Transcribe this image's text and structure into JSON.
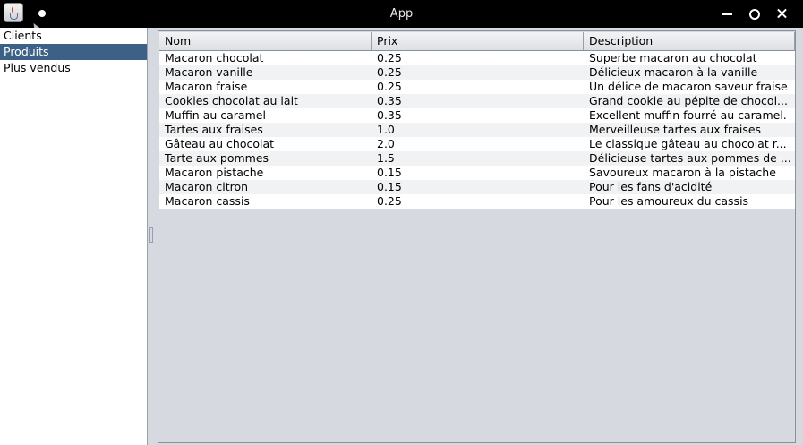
{
  "window": {
    "title": "App"
  },
  "sidebar": {
    "items": [
      {
        "label": "Clients",
        "selected": false
      },
      {
        "label": "Produits",
        "selected": true
      },
      {
        "label": "Plus vendus",
        "selected": false
      }
    ]
  },
  "table": {
    "columns": [
      "Nom",
      "Prix",
      "Description"
    ],
    "rows": [
      [
        "Macaron chocolat",
        "0.25",
        "Superbe macaron au chocolat"
      ],
      [
        "Macaron vanille",
        "0.25",
        "Délicieux macaron à la vanille"
      ],
      [
        "Macaron fraise",
        "0.25",
        "Un délice de macaron saveur fraise"
      ],
      [
        "Cookies chocolat au lait",
        "0.35",
        "Grand cookie au pépite de chocol..."
      ],
      [
        "Muffin au caramel",
        "0.35",
        "Excellent muffin fourré au caramel."
      ],
      [
        "Tartes aux fraises",
        "1.0",
        "Merveilleuse tartes aux fraises"
      ],
      [
        "Gâteau au chocolat",
        "2.0",
        "Le classique gâteau au chocolat r..."
      ],
      [
        "Tarte aux pommes",
        "1.5",
        "Délicieuse tartes aux pommes de ..."
      ],
      [
        "Macaron pistache",
        "0.15",
        "Savoureux macaron à la pistache"
      ],
      [
        "Macaron citron",
        "0.15",
        "Pour les fans d'acidité"
      ],
      [
        "Macaron cassis",
        "0.25",
        "Pour les amoureux du cassis"
      ]
    ]
  },
  "colors": {
    "selection": "#3d6186",
    "panel_background": "#d6d9e0",
    "titlebar": "#000000"
  },
  "icons": {
    "app": "java-cup-icon",
    "minimize": "minimize-icon",
    "maximize": "maximize-icon",
    "close": "close-icon"
  }
}
